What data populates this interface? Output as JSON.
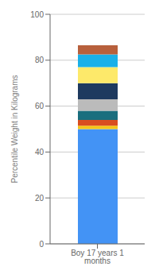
{
  "chart_data": {
    "type": "bar",
    "stacked": true,
    "categories": [
      "Boy 17 years 1 months"
    ],
    "series": [
      {
        "color": "#4393f5",
        "values": [
          50.0
        ]
      },
      {
        "color": "#f5c518",
        "values": [
          1.5
        ]
      },
      {
        "color": "#d94e1f",
        "values": [
          2.5
        ]
      },
      {
        "color": "#1a6e7e",
        "values": [
          4.0
        ]
      },
      {
        "color": "#bbbbbb",
        "values": [
          5.0
        ]
      },
      {
        "color": "#1e3a5f",
        "values": [
          7.0
        ]
      },
      {
        "color": "#fde96a",
        "values": [
          7.0
        ]
      },
      {
        "color": "#1ab0e8",
        "values": [
          5.5
        ]
      },
      {
        "color": "#b8603c",
        "values": [
          4.0
        ]
      }
    ],
    "ylabel": "Percentile Weight in Kilograms",
    "ylim": [
      0,
      100
    ],
    "yticks": [
      0,
      20,
      40,
      60,
      80,
      100
    ],
    "grid": true
  }
}
